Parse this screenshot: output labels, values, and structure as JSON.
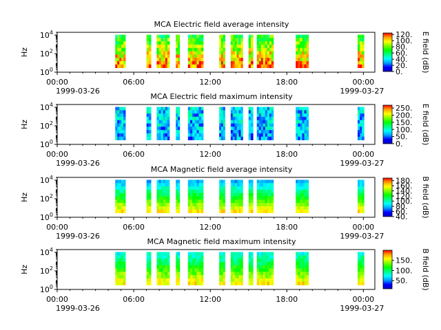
{
  "figure": {
    "time_ticks": [
      "00:00",
      "06:00",
      "12:00",
      "18:00",
      "00:00"
    ],
    "tick_hours": [
      0,
      6,
      12,
      18,
      24
    ],
    "date_labels": [
      "1999-03-26",
      "1999-03-27"
    ],
    "y_ticks": [
      {
        "base": "10",
        "exp": "0",
        "value": 1
      },
      {
        "base": "10",
        "exp": "2",
        "value": 100
      },
      {
        "base": "10",
        "exp": "4",
        "value": 10000
      }
    ],
    "ylabel": "Hz"
  },
  "colormap": {
    "name": "rainbow",
    "stops": [
      "#0000c0",
      "#0000ff",
      "#00a0ff",
      "#00ffff",
      "#00ff80",
      "#00ff00",
      "#80ff00",
      "#ffff00",
      "#ffa000",
      "#ff0000"
    ]
  },
  "data_intervals_hours": [
    [
      4.55,
      5.35
    ],
    [
      7.0,
      7.35
    ],
    [
      7.8,
      8.8
    ],
    [
      9.3,
      9.6
    ],
    [
      10.25,
      11.45
    ],
    [
      12.7,
      13.15
    ],
    [
      13.6,
      14.55
    ],
    [
      15.0,
      15.35
    ],
    [
      15.65,
      16.95
    ],
    [
      18.7,
      19.7
    ],
    [
      23.55,
      24.05
    ]
  ],
  "chart_data": [
    {
      "type": "heatmap",
      "title": "MCA  Electric field average intensity",
      "ylabel": "Hz",
      "yscale": "log",
      "ylim": [
        1,
        20000
      ],
      "xlim_hours": [
        0,
        24.9
      ],
      "colorbar_label": "E field (dB)",
      "colorbar_ticks": [
        "0.",
        "20.",
        "40.",
        "60.",
        "80.",
        "100.",
        "120."
      ],
      "colorbar_range": [
        0,
        125
      ],
      "level": 0.6
    },
    {
      "type": "heatmap",
      "title": "MCA  Electric field maximum intensity",
      "ylabel": "Hz",
      "yscale": "log",
      "ylim": [
        1,
        20000
      ],
      "xlim_hours": [
        0,
        24.9
      ],
      "colorbar_label": "E field (dB)",
      "colorbar_ticks": [
        "0.",
        "50.",
        "100.",
        "150.",
        "200.",
        "250."
      ],
      "colorbar_range": [
        0,
        270
      ],
      "level": 0.3
    },
    {
      "type": "heatmap",
      "title": "MCA  Magnetic field average intensity",
      "ylabel": "Hz",
      "yscale": "log",
      "ylim": [
        1,
        20000
      ],
      "xlim_hours": [
        0,
        24.9
      ],
      "colorbar_label": "B field (dB)",
      "colorbar_ticks": [
        "40.",
        "60.",
        "80.",
        "100.",
        "120.",
        "140.",
        "160.",
        "180."
      ],
      "colorbar_range": [
        40,
        190
      ],
      "level": 0.55
    },
    {
      "type": "heatmap",
      "title": "MCA  Magnetic field maximum intensity",
      "ylabel": "Hz",
      "yscale": "log",
      "ylim": [
        1,
        20000
      ],
      "xlim_hours": [
        0,
        24.9
      ],
      "colorbar_label": "B field (dB)",
      "colorbar_ticks": [
        "50.",
        "100.",
        "150."
      ],
      "colorbar_range": [
        10,
        200
      ],
      "level": 0.5
    }
  ]
}
